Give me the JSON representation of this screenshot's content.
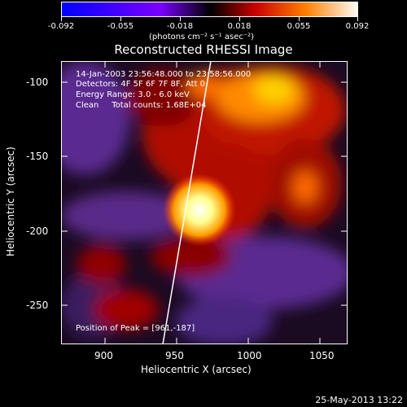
{
  "colorbar": {
    "ticks": [
      "-0.092",
      "-0.055",
      "-0.018",
      "0.018",
      "0.055",
      "0.092"
    ],
    "units": "(photons cm⁻² s⁻¹ asec⁻²)"
  },
  "title": "Reconstructed RHESSI Image",
  "info": {
    "time": "14-Jan-2003 23:56:48.000 to 23:58:56.000",
    "detectors": "Detectors: 4F 5F 6F 7F 8F, Att 0",
    "energy": "Energy Range: 3.0 - 6.0 keV",
    "clean": "Clean     Total counts: 1.68E+04",
    "peak": "Position of Peak = [961,-187]"
  },
  "axes": {
    "x_label": "Heliocentric X (arcsec)",
    "y_label": "Heliocentric Y (arcsec)",
    "x_ticks": [
      "900",
      "950",
      "1000",
      "1050"
    ],
    "y_ticks": [
      "-100",
      "-150",
      "-200",
      "-250"
    ]
  },
  "timestamp": "25-May-2013 13:22"
}
